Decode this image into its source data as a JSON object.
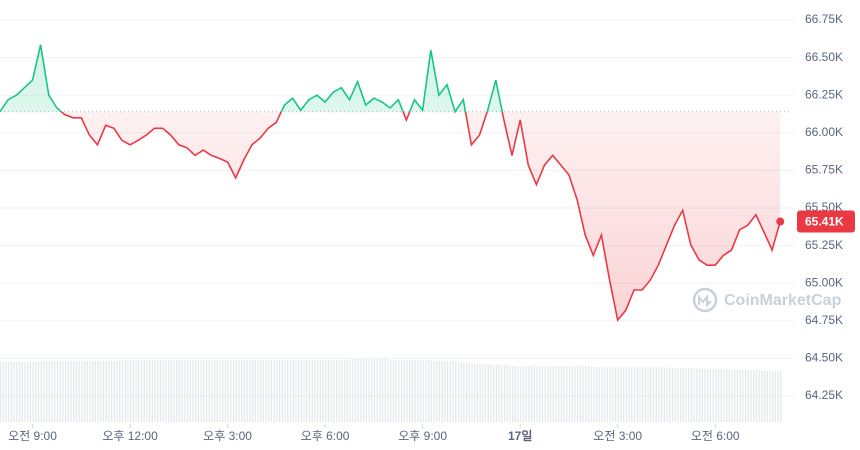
{
  "chart_data": {
    "type": "line",
    "x": [
      8,
      8.25,
      8.5,
      8.75,
      9,
      9.25,
      9.5,
      9.75,
      10,
      10.25,
      10.5,
      10.75,
      11,
      11.25,
      11.5,
      11.75,
      12,
      12.25,
      12.5,
      12.75,
      13,
      13.25,
      13.5,
      13.75,
      14,
      14.25,
      14.5,
      14.75,
      15,
      15.25,
      15.5,
      15.75,
      16,
      16.25,
      16.5,
      16.75,
      17,
      17.25,
      17.5,
      17.75,
      18,
      18.25,
      18.5,
      18.75,
      19,
      19.25,
      19.5,
      19.75,
      20,
      20.25,
      20.5,
      20.75,
      21,
      21.25,
      21.5,
      21.75,
      22,
      22.25,
      22.5,
      22.75,
      23,
      23.25,
      23.5,
      23.75,
      24,
      24.25,
      24.5,
      24.75,
      25,
      25.25,
      25.5,
      25.75,
      26,
      26.25,
      26.5,
      26.75,
      27,
      27.25,
      27.5,
      27.75,
      28,
      28.25,
      28.5,
      28.75,
      29,
      29.25,
      29.5,
      29.75,
      30,
      30.25,
      30.5,
      30.75,
      31,
      31.25,
      31.5,
      31.75,
      32
    ],
    "values": [
      66140,
      66220,
      66250,
      66300,
      66350,
      66585,
      66250,
      66165,
      66120,
      66100,
      66100,
      65985,
      65920,
      66050,
      66030,
      65950,
      65920,
      65950,
      65985,
      66030,
      66030,
      65985,
      65920,
      65900,
      65850,
      65885,
      65850,
      65830,
      65805,
      65700,
      65820,
      65920,
      65965,
      66030,
      66070,
      66185,
      66230,
      66150,
      66220,
      66250,
      66205,
      66270,
      66300,
      66220,
      66340,
      66185,
      66230,
      66205,
      66165,
      66220,
      66085,
      66220,
      66150,
      66550,
      66250,
      66320,
      66140,
      66220,
      65920,
      65985,
      66150,
      66350,
      66085,
      65850,
      66085,
      65785,
      65655,
      65785,
      65850,
      65785,
      65720,
      65555,
      65320,
      65185,
      65320,
      65020,
      64755,
      64820,
      64955,
      64955,
      65020,
      65120,
      65255,
      65385,
      65485,
      65255,
      65155,
      65120,
      65120,
      65185,
      65220,
      65355,
      65385,
      65455,
      65340,
      65220,
      65410
    ],
    "volume": [
      60,
      60,
      60,
      60,
      60,
      61,
      61,
      61,
      61,
      61,
      61,
      61,
      61,
      61,
      61,
      62,
      62,
      62,
      62,
      62,
      62,
      62,
      62,
      62,
      62,
      62,
      62,
      62,
      62,
      62,
      62,
      62,
      62,
      62,
      62,
      62,
      62,
      62,
      62,
      62,
      62,
      62,
      62,
      63,
      63,
      63,
      63,
      63,
      62,
      62,
      62,
      62,
      62,
      61,
      61,
      61,
      60,
      59,
      58,
      58,
      57,
      57,
      57,
      56,
      56,
      56,
      56,
      56,
      56,
      56,
      56,
      56,
      56,
      55,
      55,
      55,
      55,
      55,
      55,
      55,
      55,
      55,
      54,
      54,
      54,
      54,
      53,
      53,
      53,
      53,
      52,
      52,
      52,
      52,
      51,
      51,
      51
    ],
    "baseline": 66140,
    "up_color": "#16c784",
    "down_color": "#ea3943",
    "xlim": [
      8,
      32.3
    ],
    "ylim": [
      64024,
      66883
    ],
    "xticks": [
      {
        "value": 9,
        "label": "오전 9:00"
      },
      {
        "value": 12,
        "label": "오후 12:00"
      },
      {
        "value": 15,
        "label": "오후 3:00"
      },
      {
        "value": 18,
        "label": "오후 6:00"
      },
      {
        "value": 21,
        "label": "오후 9:00"
      },
      {
        "value": 24,
        "label": "17일"
      },
      {
        "value": 27,
        "label": "오전 3:00"
      },
      {
        "value": 30,
        "label": "오전 6:00"
      }
    ],
    "yticks": [
      {
        "value": 64250,
        "label": "64.25K"
      },
      {
        "value": 64500,
        "label": "64.50K"
      },
      {
        "value": 64750,
        "label": "64.75K"
      },
      {
        "value": 65000,
        "label": "65.00K"
      },
      {
        "value": 65250,
        "label": "65.25K"
      },
      {
        "value": 65500,
        "label": "65.50K"
      },
      {
        "value": 65750,
        "label": "65.75K"
      },
      {
        "value": 66000,
        "label": "66.00K"
      },
      {
        "value": 66250,
        "label": "66.25K"
      },
      {
        "value": 66500,
        "label": "66.50K"
      },
      {
        "value": 66750,
        "label": "66.75K"
      }
    ],
    "last_price_label": "65.41K",
    "watermark": "CoinMarketCap"
  }
}
